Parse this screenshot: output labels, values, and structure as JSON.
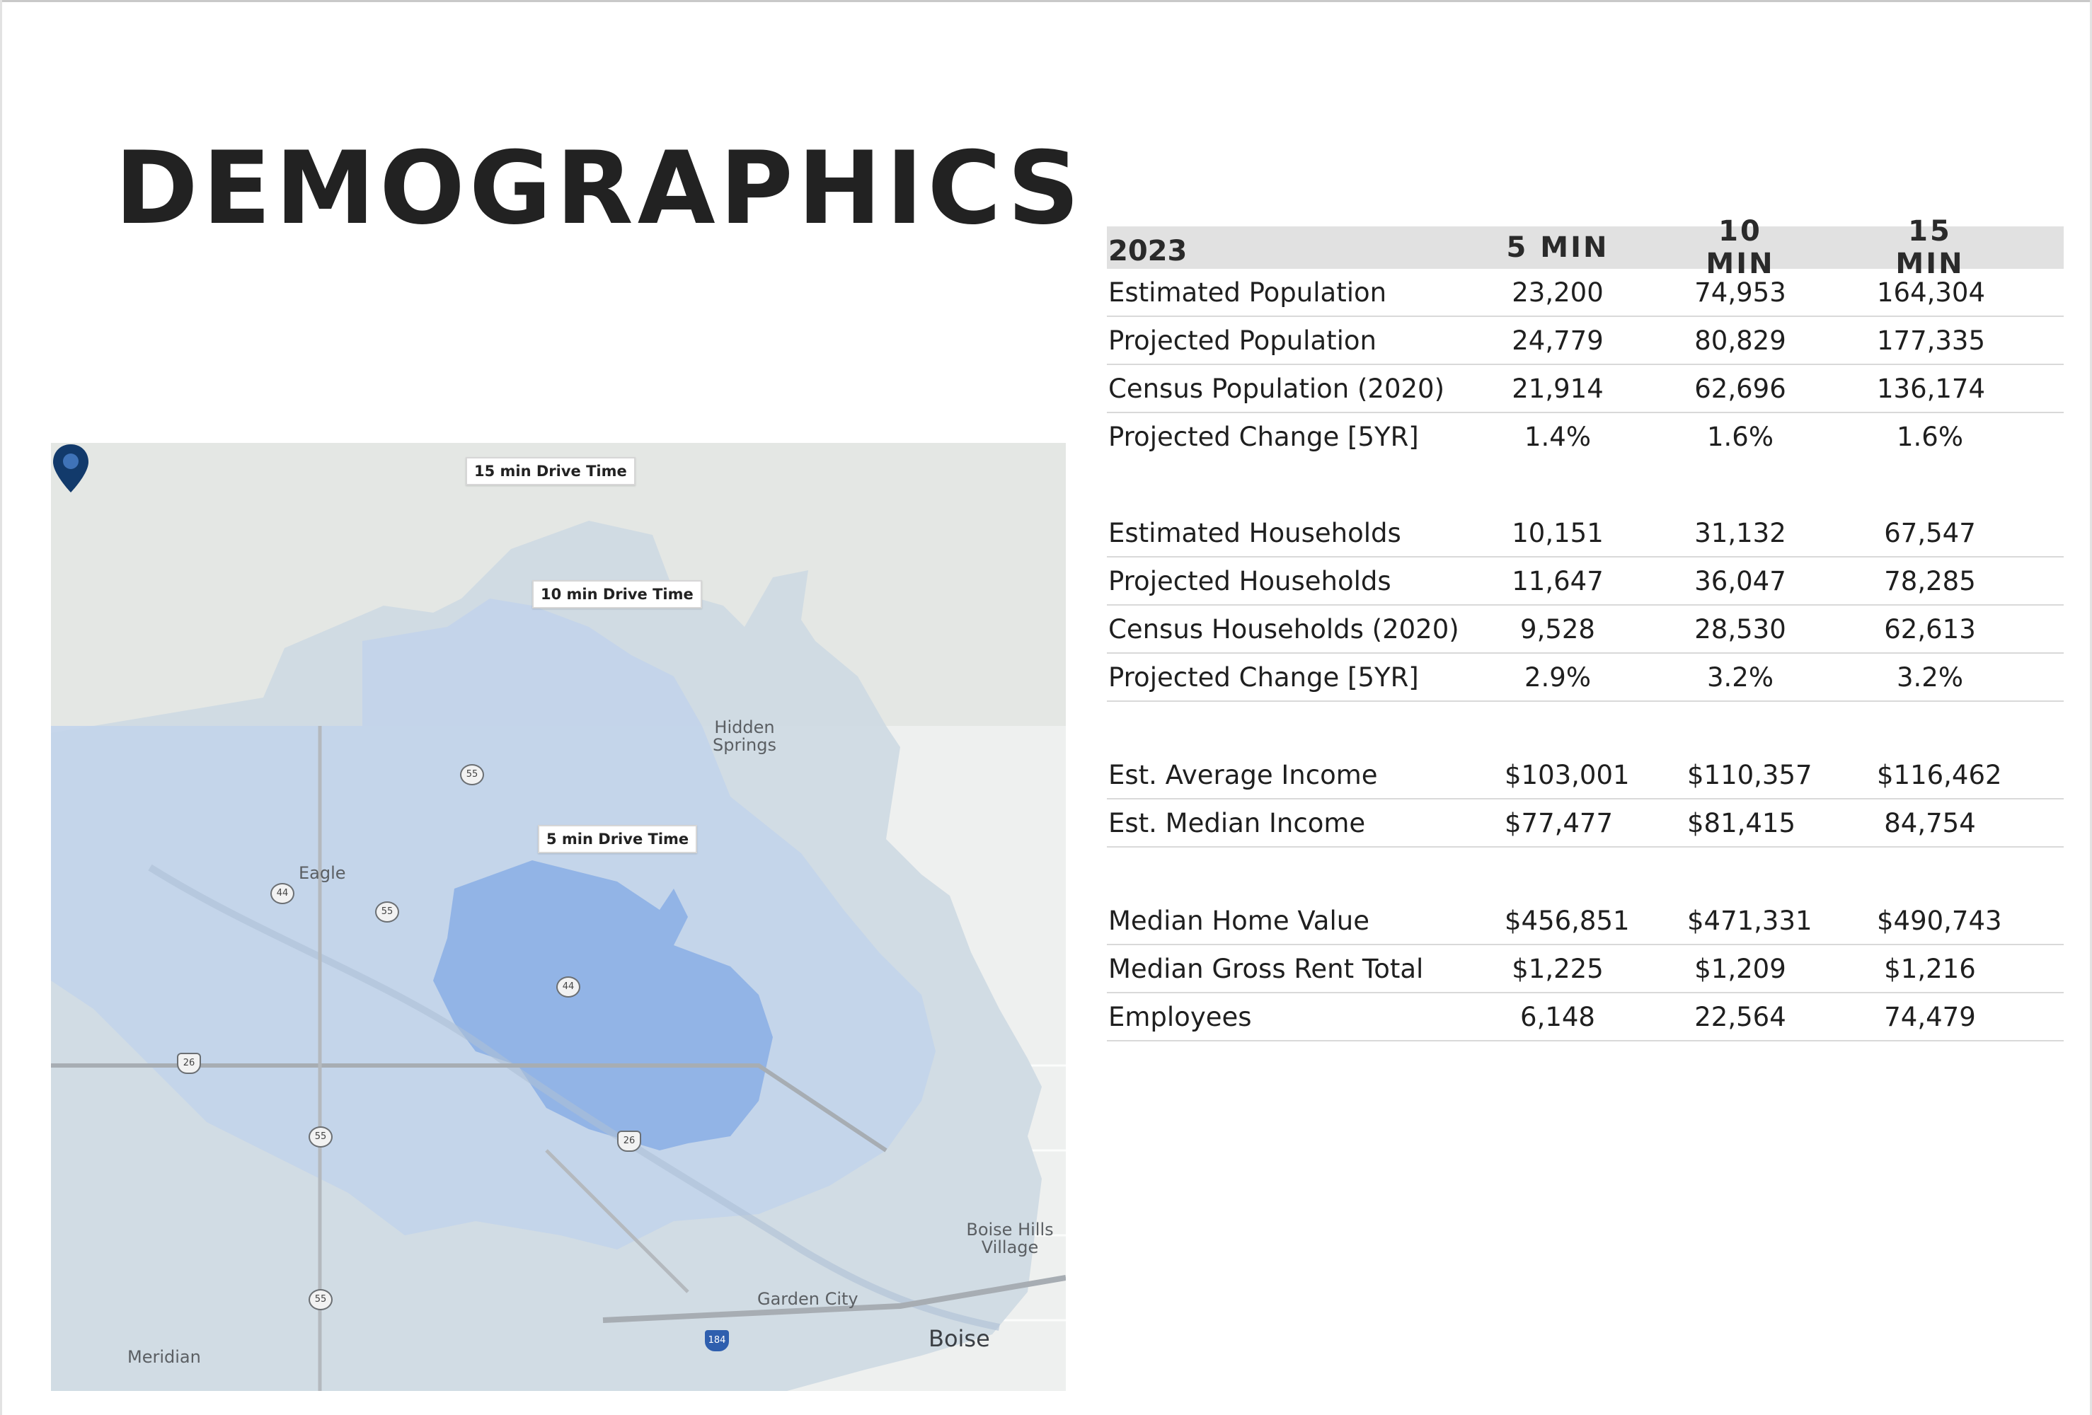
{
  "page": {
    "title": "DEMOGRAPHICS"
  },
  "map": {
    "labels": {
      "drive_15": "15 min Drive Time",
      "drive_10": "10 min Drive Time",
      "drive_5": "5 min Drive Time"
    },
    "places": {
      "hidden_springs": "Hidden Springs",
      "eagle": "Eagle",
      "boise_hills_village": "Boise Hills Village",
      "garden_city": "Garden City",
      "boise": "Boise",
      "meridian": "Meridian"
    },
    "shields": {
      "s55a": "55",
      "s44a": "44",
      "s55b": "55",
      "s44b": "44",
      "s26a": "26",
      "s55c": "55",
      "s26b": "26",
      "s55d": "55",
      "i184": "184"
    },
    "colors": {
      "zone_15": "#cfdae3",
      "zone_10": "#c3d4ea",
      "zone_5": "#8fb2e6",
      "pin": "#123a6b"
    },
    "pin_icon": "location-pin-icon"
  },
  "table": {
    "header": [
      "2023",
      "5 MIN",
      "10 MIN",
      "15 MIN"
    ],
    "groups": [
      [
        {
          "label": "Estimated Population",
          "v5": "23,200",
          "v10": "74,953",
          "v15": "164,304"
        },
        {
          "label": "Projected Population",
          "v5": "24,779",
          "v10": "80,829",
          "v15": "177,335"
        },
        {
          "label": "Census Population (2020)",
          "v5": "21,914",
          "v10": "62,696",
          "v15": "136,174"
        },
        {
          "label": "Projected Change [5YR]",
          "v5": "1.4%",
          "v10": "1.6%",
          "v15": "1.6%"
        }
      ],
      [
        {
          "label": "Estimated Households",
          "v5": "10,151",
          "v10": "31,132",
          "v15": "67,547"
        },
        {
          "label": "Projected Households",
          "v5": "11,647",
          "v10": "36,047",
          "v15": "78,285"
        },
        {
          "label": "Census Households (2020)",
          "v5": "9,528",
          "v10": "28,530",
          "v15": "62,613"
        },
        {
          "label": "Projected Change [5YR]",
          "v5": "2.9%",
          "v10": "3.2%",
          "v15": "3.2%"
        }
      ],
      [
        {
          "label": "Est. Average Income",
          "v5": "$103,001",
          "v10": "$110,357",
          "v15": "$116,462"
        },
        {
          "label": "Est. Median Income",
          "v5": "$77,477",
          "v10": "$81,415",
          "v15": "84,754"
        }
      ],
      [
        {
          "label": "Median Home Value",
          "v5": "$456,851",
          "v10": "$471,331",
          "v15": "$490,743"
        },
        {
          "label": "Median Gross Rent Total",
          "v5": "$1,225",
          "v10": "$1,209",
          "v15": "$1,216"
        },
        {
          "label": "Employees",
          "v5": "6,148",
          "v10": "22,564",
          "v15": "74,479"
        }
      ]
    ]
  }
}
